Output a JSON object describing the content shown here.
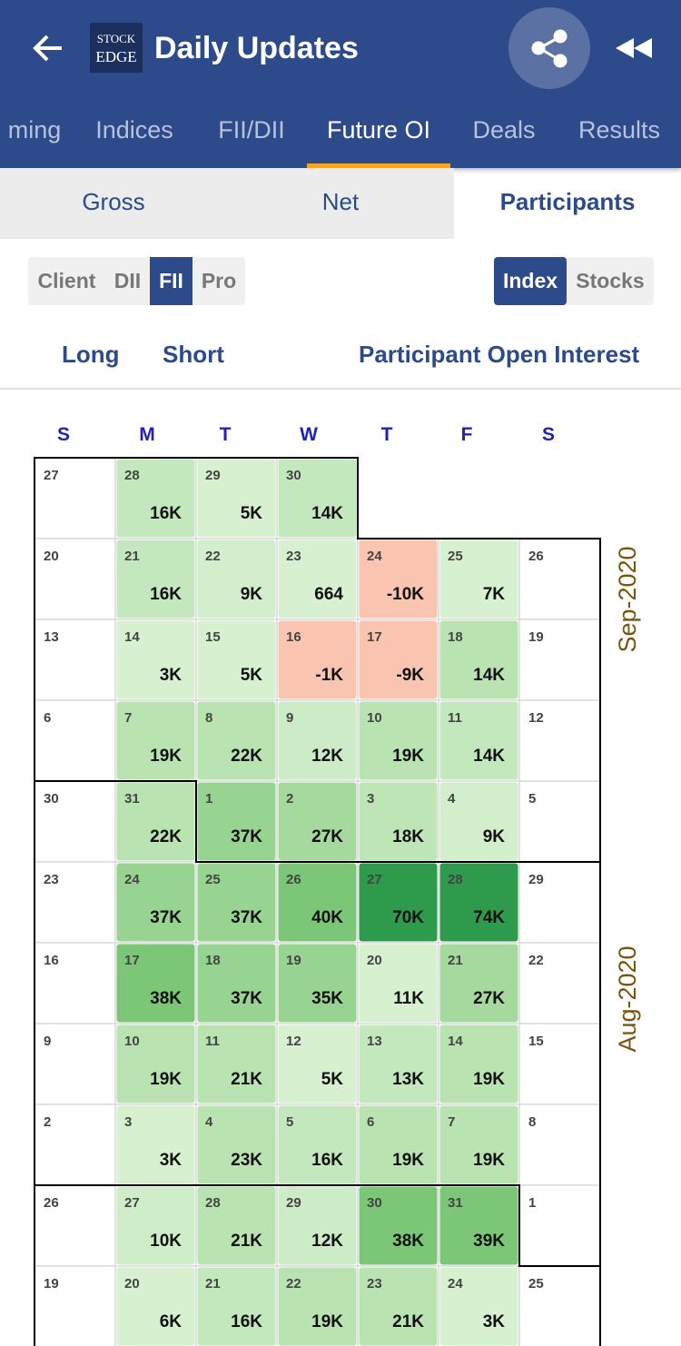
{
  "header": {
    "title": "Daily Updates",
    "logo": [
      "STOCK",
      "EDGE"
    ]
  },
  "tabs": {
    "items": [
      "ming",
      "Indices",
      "FII/DII",
      "Future OI",
      "Deals",
      "Results"
    ],
    "active": 3
  },
  "sub_tabs": {
    "items": [
      "Gross",
      "Net",
      "Participants"
    ],
    "active": 2
  },
  "participants": {
    "items": [
      "Client",
      "DII",
      "FII",
      "Pro"
    ],
    "active": 2
  },
  "segments": {
    "items": [
      "Index",
      "Stocks"
    ],
    "active": 0
  },
  "links": [
    "Long",
    "Short",
    "Participant Open Interest"
  ],
  "calendar": {
    "weekdays": [
      "S",
      "M",
      "T",
      "W",
      "T",
      "F",
      "S"
    ],
    "months": [
      "Sep-2020",
      "Aug-2020"
    ],
    "weeks": [
      [
        {
          "day": 27
        },
        {
          "day": 28,
          "value": "16K",
          "color": "#c4e8bd"
        },
        {
          "day": 29,
          "value": "5K",
          "color": "#d6f0d0"
        },
        {
          "day": 30,
          "value": "14K",
          "color": "#c4e8bd"
        }
      ],
      [
        {
          "day": 20
        },
        {
          "day": 21,
          "value": "16K",
          "color": "#c4e8bd"
        },
        {
          "day": 22,
          "value": "9K",
          "color": "#d3eecc"
        },
        {
          "day": 23,
          "value": "664",
          "color": "#d6f0d0"
        },
        {
          "day": 24,
          "value": "-10K",
          "color": "#f9c5b1"
        },
        {
          "day": 25,
          "value": "7K",
          "color": "#d6f0d0"
        },
        {
          "day": 26
        }
      ],
      [
        {
          "day": 13
        },
        {
          "day": 14,
          "value": "3K",
          "color": "#d6f0d0"
        },
        {
          "day": 15,
          "value": "5K",
          "color": "#d6f0d0"
        },
        {
          "day": 16,
          "value": "-1K",
          "color": "#f9c5b1"
        },
        {
          "day": 17,
          "value": "-9K",
          "color": "#f9c5b1"
        },
        {
          "day": 18,
          "value": "14K",
          "color": "#b9e3b1"
        },
        {
          "day": 19
        }
      ],
      [
        {
          "day": 6
        },
        {
          "day": 7,
          "value": "19K",
          "color": "#b9e3b1"
        },
        {
          "day": 8,
          "value": "22K",
          "color": "#b9e3b1"
        },
        {
          "day": 9,
          "value": "12K",
          "color": "#cdebc6"
        },
        {
          "day": 10,
          "value": "19K",
          "color": "#b9e3b1"
        },
        {
          "day": 11,
          "value": "14K",
          "color": "#c4e8bd"
        },
        {
          "day": 12
        }
      ],
      [
        {
          "day": 30
        },
        {
          "day": 31,
          "value": "22K",
          "color": "#b9e3b1"
        },
        {
          "day": 1,
          "value": "37K",
          "color": "#98d491"
        },
        {
          "day": 2,
          "value": "27K",
          "color": "#a5d99d"
        },
        {
          "day": 3,
          "value": "18K",
          "color": "#bde5b5"
        },
        {
          "day": 4,
          "value": "9K",
          "color": "#d3eecc"
        },
        {
          "day": 5
        }
      ],
      [
        {
          "day": 23
        },
        {
          "day": 24,
          "value": "37K",
          "color": "#98d491"
        },
        {
          "day": 25,
          "value": "37K",
          "color": "#98d491"
        },
        {
          "day": 26,
          "value": "40K",
          "color": "#7cc677"
        },
        {
          "day": 27,
          "value": "70K",
          "color": "#2e9a4c"
        },
        {
          "day": 28,
          "value": "74K",
          "color": "#2e9a4c"
        },
        {
          "day": 29
        }
      ],
      [
        {
          "day": 16
        },
        {
          "day": 17,
          "value": "38K",
          "color": "#7cc677"
        },
        {
          "day": 18,
          "value": "37K",
          "color": "#98d491"
        },
        {
          "day": 19,
          "value": "35K",
          "color": "#98d491"
        },
        {
          "day": 20,
          "value": "11K",
          "color": "#d6f0d0"
        },
        {
          "day": 21,
          "value": "27K",
          "color": "#a5d99d"
        },
        {
          "day": 22
        }
      ],
      [
        {
          "day": 9
        },
        {
          "day": 10,
          "value": "19K",
          "color": "#b9e3b1"
        },
        {
          "day": 11,
          "value": "21K",
          "color": "#b9e3b1"
        },
        {
          "day": 12,
          "value": "5K",
          "color": "#d6f0d0"
        },
        {
          "day": 13,
          "value": "13K",
          "color": "#c4e8bd"
        },
        {
          "day": 14,
          "value": "19K",
          "color": "#b9e3b1"
        },
        {
          "day": 15
        }
      ],
      [
        {
          "day": 2
        },
        {
          "day": 3,
          "value": "3K",
          "color": "#d6f0d0"
        },
        {
          "day": 4,
          "value": "23K",
          "color": "#b9e3b1"
        },
        {
          "day": 5,
          "value": "16K",
          "color": "#c4e8bd"
        },
        {
          "day": 6,
          "value": "19K",
          "color": "#b9e3b1"
        },
        {
          "day": 7,
          "value": "19K",
          "color": "#b9e3b1"
        },
        {
          "day": 8
        }
      ],
      [
        {
          "day": 26
        },
        {
          "day": 27,
          "value": "10K",
          "color": "#d0edc9"
        },
        {
          "day": 28,
          "value": "21K",
          "color": "#b9e3b1"
        },
        {
          "day": 29,
          "value": "12K",
          "color": "#cdebc6"
        },
        {
          "day": 30,
          "value": "38K",
          "color": "#7cc677"
        },
        {
          "day": 31,
          "value": "39K",
          "color": "#7cc677"
        },
        {
          "day": 1
        }
      ],
      [
        {
          "day": 19
        },
        {
          "day": 20,
          "value": "6K",
          "color": "#d6f0d0"
        },
        {
          "day": 21,
          "value": "16K",
          "color": "#c4e8bd"
        },
        {
          "day": 22,
          "value": "19K",
          "color": "#b9e3b1"
        },
        {
          "day": 23,
          "value": "21K",
          "color": "#b9e3b1"
        },
        {
          "day": 24,
          "value": "3K",
          "color": "#d6f0d0"
        },
        {
          "day": 25
        }
      ]
    ]
  }
}
